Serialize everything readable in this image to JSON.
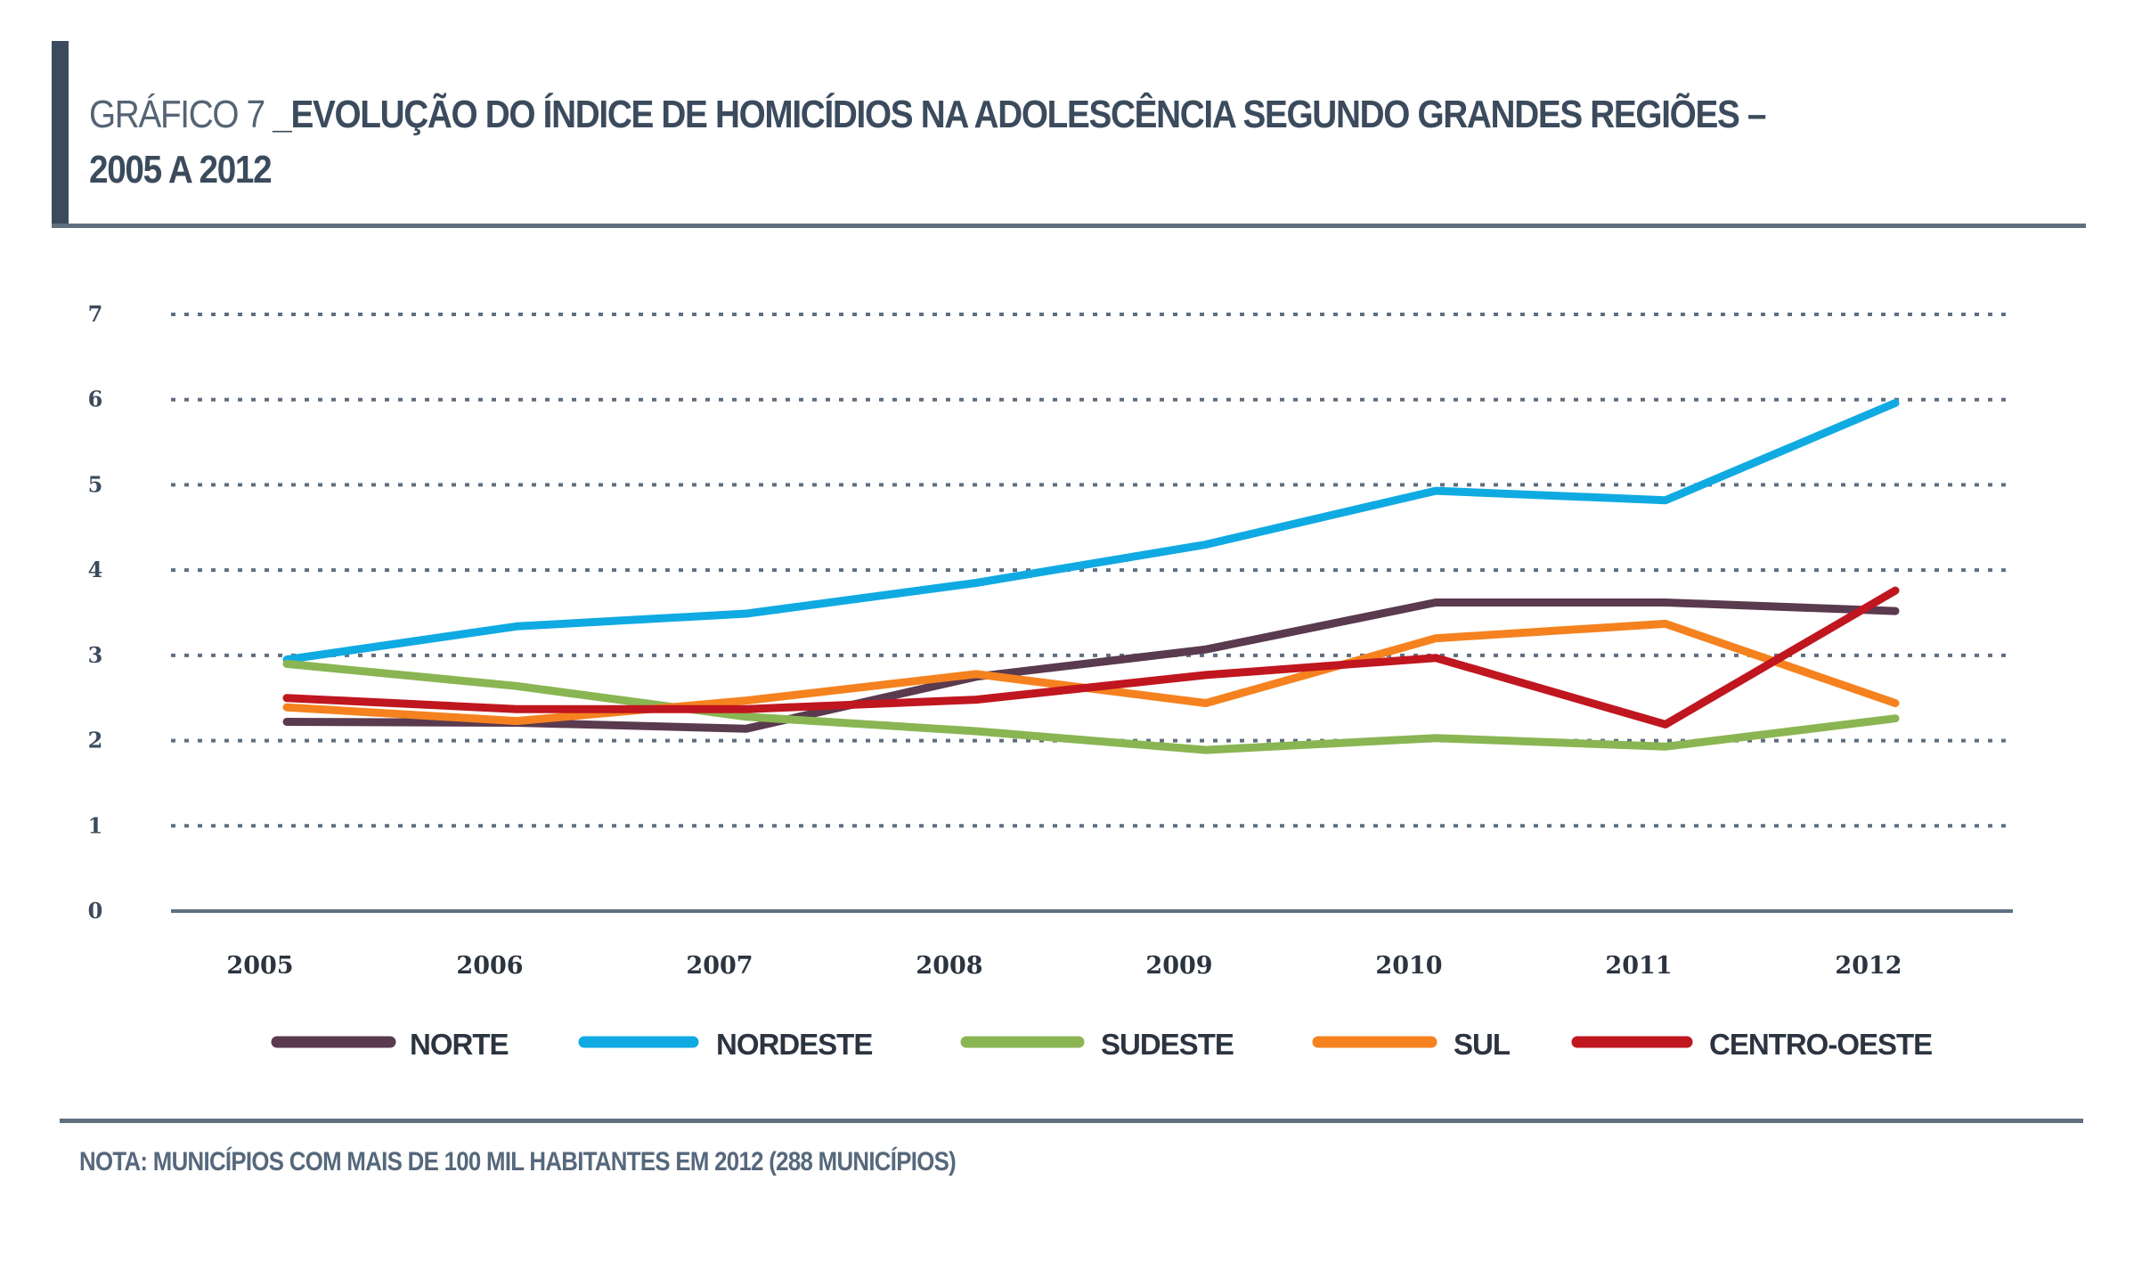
{
  "header": {
    "title_prefix": "GRÁFICO 7",
    "title_main": "_EVOLUÇÃO DO ÍNDICE DE HOMICÍDIOS NA ADOLESCÊNCIA SEGUNDO GRANDES REGIÕES –",
    "title_line2": "2005 A 2012"
  },
  "note": "NOTA: MUNICÍPIOS COM MAIS DE 100 MIL HABITANTES EM 2012 (288 MUNICÍPIOS)",
  "chart_data": {
    "type": "line",
    "title": "GRÁFICO 7 _EVOLUÇÃO DO ÍNDICE DE HOMICÍDIOS NA ADOLESCÊNCIA SEGUNDO GRANDES REGIÕES – 2005 A 2012",
    "xlabel": "",
    "ylabel": "",
    "x": [
      "2005",
      "2006",
      "2007",
      "2008",
      "2009",
      "2010",
      "2011",
      "2012"
    ],
    "ylim": [
      0,
      7
    ],
    "yticks": [
      "0",
      "1",
      "2",
      "3",
      "4",
      "5",
      "6",
      "7"
    ],
    "grid": true,
    "legend_position": "bottom",
    "series": [
      {
        "name": "NORTE",
        "color": "#5a3a4e",
        "values": [
          2.22,
          2.21,
          2.14,
          2.75,
          3.07,
          3.62,
          3.62,
          3.52
        ]
      },
      {
        "name": "NORDESTE",
        "color": "#10aae2",
        "values": [
          2.95,
          3.34,
          3.49,
          3.85,
          4.3,
          4.93,
          4.82,
          5.96
        ]
      },
      {
        "name": "SUDESTE",
        "color": "#8ab553",
        "values": [
          2.9,
          2.64,
          2.28,
          2.11,
          1.89,
          2.03,
          1.93,
          2.26
        ]
      },
      {
        "name": "SUL",
        "color": "#f5821f",
        "values": [
          2.39,
          2.23,
          2.47,
          2.78,
          2.44,
          3.2,
          3.37,
          2.44
        ]
      },
      {
        "name": "CENTRO-OESTE",
        "color": "#c0161f",
        "values": [
          2.5,
          2.37,
          2.37,
          2.48,
          2.77,
          2.97,
          2.19,
          3.76
        ]
      }
    ]
  }
}
